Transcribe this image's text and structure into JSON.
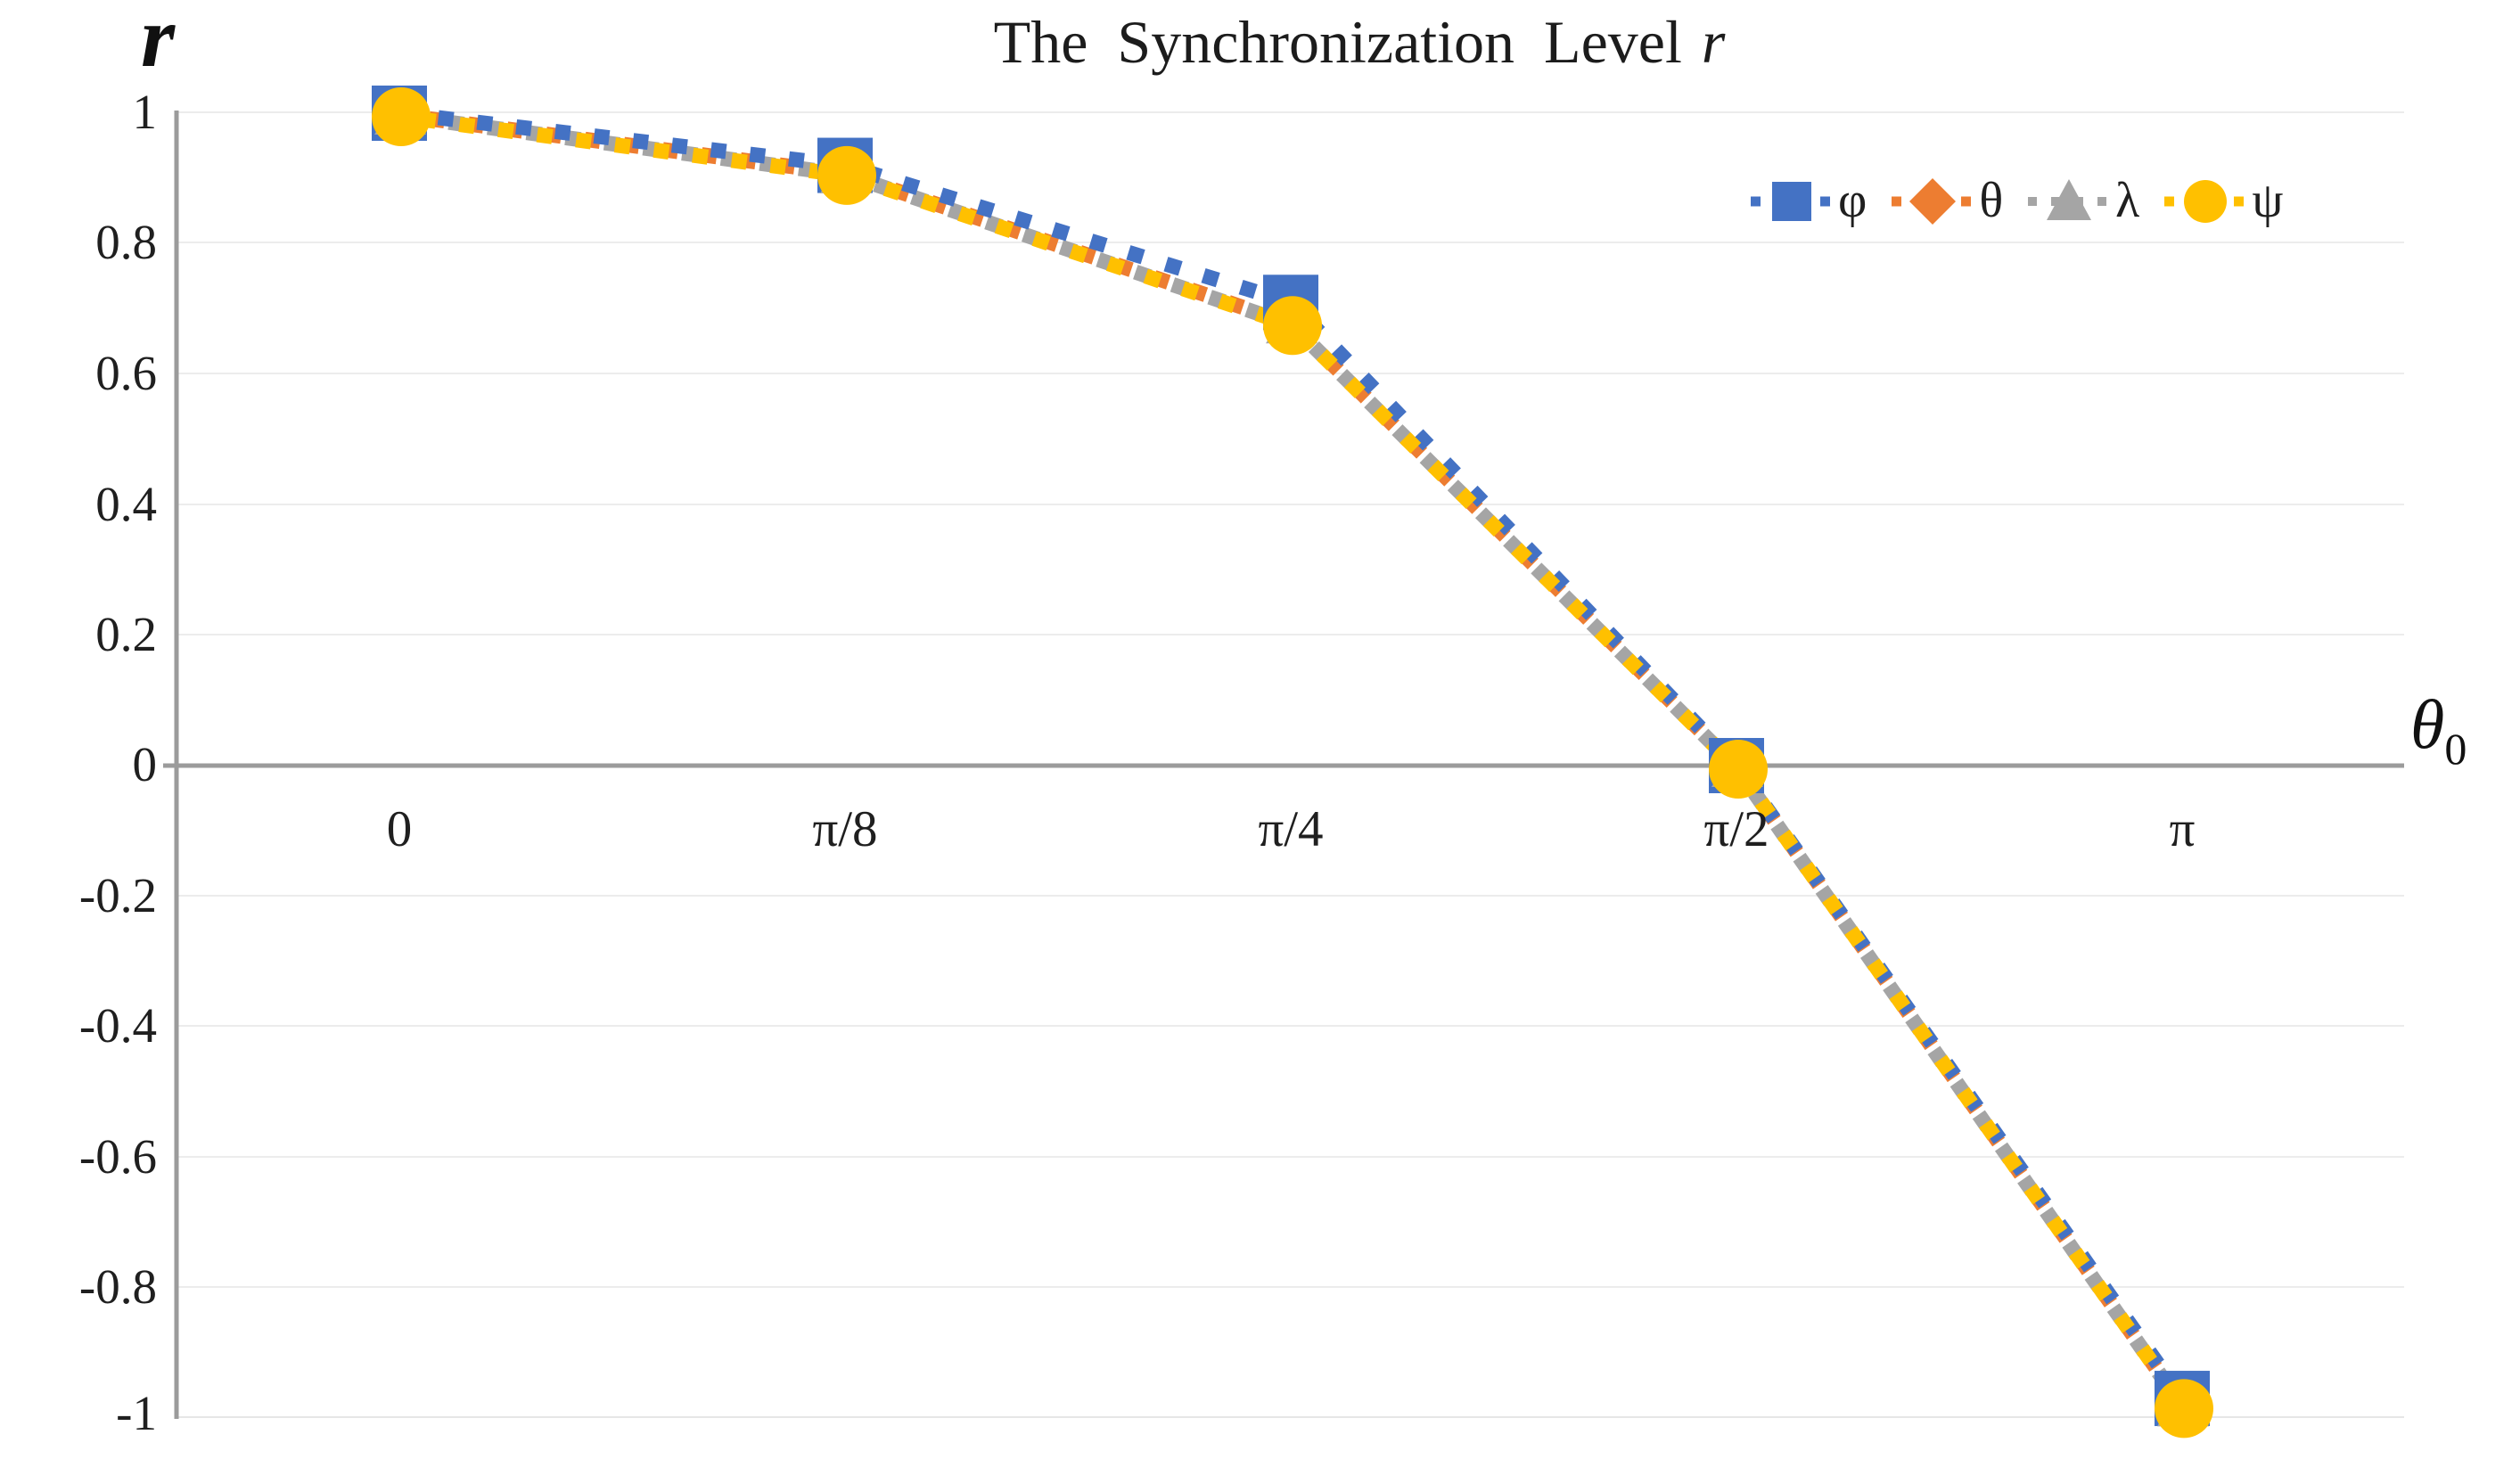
{
  "title": {
    "main": "The Synchronization Level",
    "suffix_italic": "r"
  },
  "axes": {
    "y_title": "r",
    "x_title_symbol": "θ",
    "x_title_subscript": "0"
  },
  "chart_data": {
    "type": "line",
    "title": "The Synchronization Level r",
    "xlabel": "θ0",
    "ylabel": "r",
    "line_style": "dotted",
    "grid": true,
    "legend_position": "top-right",
    "ylim": [
      -1,
      1
    ],
    "y_tick_labels": [
      "1",
      "0.8",
      "0.6",
      "0.4",
      "0.2",
      "0",
      "-0.2",
      "-0.4",
      "-0.6",
      "-0.8",
      "-1"
    ],
    "categories": [
      "0",
      "π/8",
      "π/4",
      "π/2",
      "π"
    ],
    "series": [
      {
        "name": "φ",
        "marker": "square",
        "color": "#4472C4",
        "values": [
          1,
          0.92,
          0.71,
          0,
          -0.97
        ]
      },
      {
        "name": "θ",
        "marker": "diamond",
        "color": "#ED7D31",
        "values": [
          1,
          0.91,
          0.68,
          0,
          -0.98
        ]
      },
      {
        "name": "λ",
        "marker": "triangle",
        "color": "#A5A5A5",
        "values": [
          1,
          0.91,
          0.68,
          0,
          -0.98
        ]
      },
      {
        "name": "ψ",
        "marker": "circle",
        "color": "#FFC000",
        "values": [
          1,
          0.91,
          0.68,
          0,
          -0.98
        ]
      }
    ],
    "colors": {
      "axis_line": "#9B9B9B",
      "gridline": "#ECECEC",
      "text": "#1f1f1f"
    }
  }
}
